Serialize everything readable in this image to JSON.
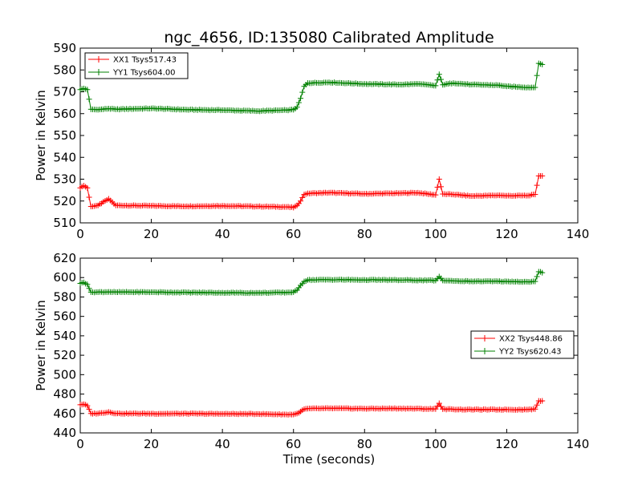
{
  "figure": {
    "title": "ngc_4656, ID:135080 Calibrated Amplitude"
  },
  "chart_data": [
    {
      "type": "line",
      "title": "ngc_4656, ID:135080 Calibrated Amplitude",
      "xlabel": "",
      "ylabel": "Power in Kelvin",
      "xlim": [
        0,
        140
      ],
      "ylim": [
        510,
        590
      ],
      "xticks": [
        0,
        20,
        40,
        60,
        80,
        100,
        120,
        140
      ],
      "yticks": [
        510,
        520,
        530,
        540,
        550,
        560,
        570,
        580,
        590
      ],
      "grid": false,
      "legend_position": "top-left",
      "series": [
        {
          "name": "XX1 Tsys517.43",
          "color": "#ff0000",
          "marker": "plus",
          "points": [
            [
              0,
              526
            ],
            [
              1,
              527
            ],
            [
              2,
              526
            ],
            [
              3,
              517.5
            ],
            [
              5,
              518
            ],
            [
              8,
              521
            ],
            [
              10,
              518
            ],
            [
              20,
              517.8
            ],
            [
              30,
              517.6
            ],
            [
              40,
              517.8
            ],
            [
              50,
              517.5
            ],
            [
              58,
              517.3
            ],
            [
              60,
              517
            ],
            [
              61,
              518
            ],
            [
              62,
              520
            ],
            [
              63,
              523
            ],
            [
              64,
              523.5
            ],
            [
              70,
              523.8
            ],
            [
              80,
              523.3
            ],
            [
              90,
              523.6
            ],
            [
              95,
              523.8
            ],
            [
              100,
              522.8
            ],
            [
              101,
              530
            ],
            [
              102,
              523.2
            ],
            [
              105,
              523
            ],
            [
              110,
              522.3
            ],
            [
              118,
              522.6
            ],
            [
              120,
              522.4
            ],
            [
              126,
              522.5
            ],
            [
              128,
              523
            ],
            [
              129,
              531.5
            ],
            [
              130,
              531.5
            ]
          ]
        },
        {
          "name": "YY1 Tsys604.00",
          "color": "#008000",
          "marker": "plus",
          "points": [
            [
              0,
              571
            ],
            [
              1,
              571.5
            ],
            [
              2,
              571
            ],
            [
              3,
              562
            ],
            [
              5,
              561.8
            ],
            [
              8,
              562.3
            ],
            [
              10,
              562
            ],
            [
              20,
              562.4
            ],
            [
              30,
              561.8
            ],
            [
              40,
              561.6
            ],
            [
              50,
              561.2
            ],
            [
              58,
              561.6
            ],
            [
              60,
              561.8
            ],
            [
              61,
              563
            ],
            [
              62,
              567
            ],
            [
              63,
              572.5
            ],
            [
              64,
              574
            ],
            [
              70,
              574.3
            ],
            [
              80,
              573.6
            ],
            [
              90,
              573.3
            ],
            [
              95,
              573.6
            ],
            [
              100,
              572.8
            ],
            [
              101,
              578
            ],
            [
              102,
              573.2
            ],
            [
              105,
              574
            ],
            [
              110,
              573.3
            ],
            [
              118,
              573
            ],
            [
              120,
              572.5
            ],
            [
              126,
              572
            ],
            [
              128,
              572
            ],
            [
              129,
              583
            ],
            [
              130,
              582.5
            ]
          ]
        }
      ]
    },
    {
      "type": "line",
      "title": "",
      "xlabel": "Time (seconds)",
      "ylabel": "Power in Kelvin",
      "xlim": [
        0,
        140
      ],
      "ylim": [
        440,
        620
      ],
      "xticks": [
        0,
        20,
        40,
        60,
        80,
        100,
        120,
        140
      ],
      "yticks": [
        440,
        460,
        480,
        500,
        520,
        540,
        560,
        580,
        600,
        620
      ],
      "grid": false,
      "legend_position": "center-right",
      "series": [
        {
          "name": "XX2 Tsys448.86",
          "color": "#ff0000",
          "marker": "plus",
          "points": [
            [
              0,
              469
            ],
            [
              1,
              469.5
            ],
            [
              2,
              468
            ],
            [
              3,
              460
            ],
            [
              5,
              460
            ],
            [
              8,
              461.5
            ],
            [
              10,
              460
            ],
            [
              20,
              459.8
            ],
            [
              30,
              459.8
            ],
            [
              40,
              459.6
            ],
            [
              50,
              459.5
            ],
            [
              58,
              459
            ],
            [
              60,
              459
            ],
            [
              61,
              460
            ],
            [
              62,
              462
            ],
            [
              63,
              464.5
            ],
            [
              64,
              465
            ],
            [
              70,
              465.3
            ],
            [
              80,
              465
            ],
            [
              90,
              465.2
            ],
            [
              100,
              464.6
            ],
            [
              101,
              470.5
            ],
            [
              102,
              464.5
            ],
            [
              105,
              464.3
            ],
            [
              110,
              464
            ],
            [
              120,
              464
            ],
            [
              126,
              464
            ],
            [
              128,
              464.5
            ],
            [
              129,
              473
            ],
            [
              130,
              473
            ]
          ]
        },
        {
          "name": "YY2 Tsys620.43",
          "color": "#008000",
          "marker": "plus",
          "points": [
            [
              0,
              594
            ],
            [
              1,
              595
            ],
            [
              2,
              593
            ],
            [
              3,
              585
            ],
            [
              5,
              585
            ],
            [
              8,
              585.2
            ],
            [
              10,
              585
            ],
            [
              20,
              585
            ],
            [
              30,
              584.6
            ],
            [
              40,
              584.4
            ],
            [
              50,
              584.2
            ],
            [
              58,
              584.6
            ],
            [
              60,
              585
            ],
            [
              61,
              587
            ],
            [
              62,
              592
            ],
            [
              63,
              596
            ],
            [
              64,
              597.5
            ],
            [
              70,
              597.8
            ],
            [
              80,
              597.6
            ],
            [
              90,
              597.4
            ],
            [
              100,
              597
            ],
            [
              101,
              601
            ],
            [
              102,
              597
            ],
            [
              105,
              596.5
            ],
            [
              110,
              596.2
            ],
            [
              120,
              596
            ],
            [
              126,
              595.6
            ],
            [
              128,
              596
            ],
            [
              129,
              606
            ],
            [
              130,
              605
            ]
          ]
        }
      ]
    }
  ]
}
